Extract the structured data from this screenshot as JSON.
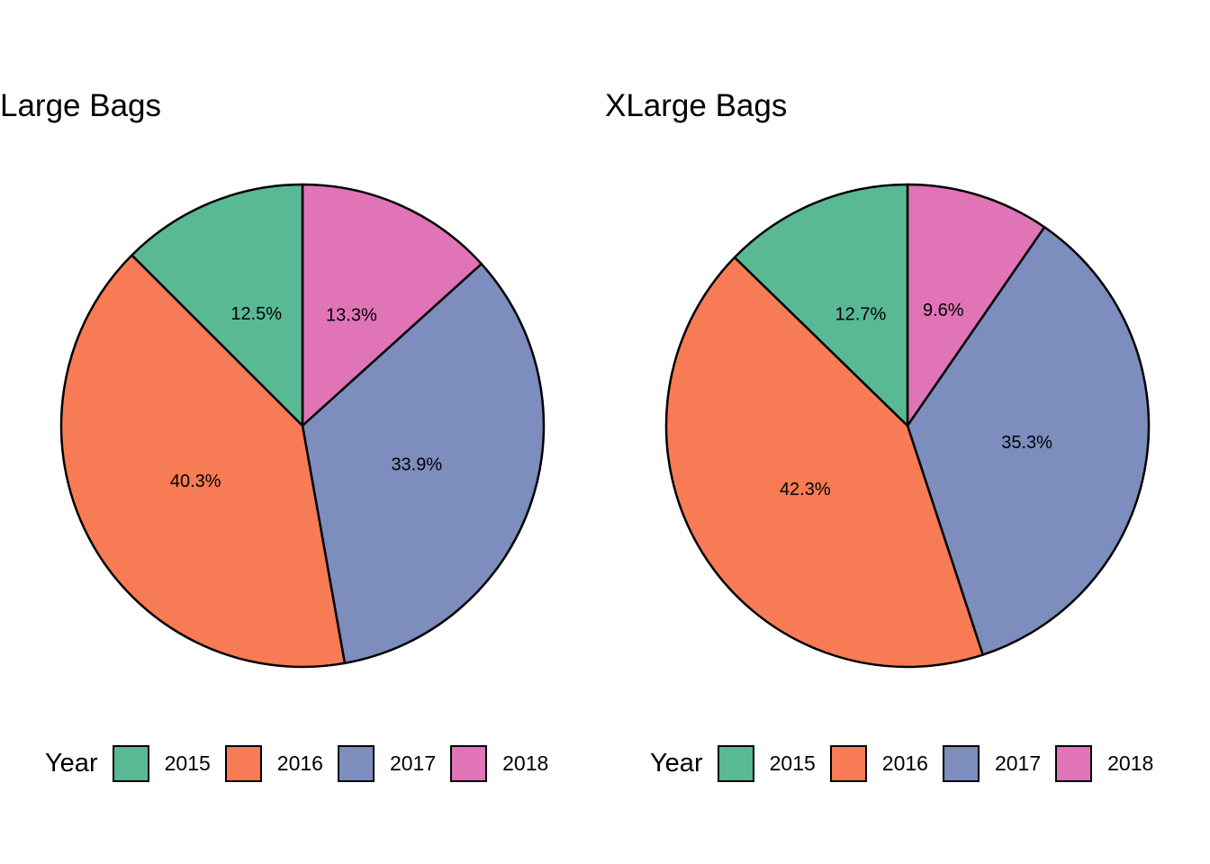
{
  "chart_data": [
    {
      "type": "pie",
      "title": "Large Bags",
      "categories": [
        "2015",
        "2016",
        "2017",
        "2018"
      ],
      "values": [
        12.5,
        40.3,
        33.9,
        13.3
      ],
      "labels": [
        "12.5%",
        "40.3%",
        "33.9%",
        "13.3%"
      ],
      "colors": [
        "#59B994",
        "#F77B54",
        "#7C8DBE",
        "#E074B7"
      ],
      "legend_title": "Year",
      "legend": "bottom"
    },
    {
      "type": "pie",
      "title": "XLarge Bags",
      "categories": [
        "2015",
        "2016",
        "2017",
        "2018"
      ],
      "values": [
        12.7,
        42.3,
        35.3,
        9.6
      ],
      "labels": [
        "12.7%",
        "42.3%",
        "35.3%",
        "9.6%"
      ],
      "colors": [
        "#59B994",
        "#F77B54",
        "#7C8DBE",
        "#E074B7"
      ],
      "legend_title": "Year",
      "legend": "bottom"
    }
  ]
}
